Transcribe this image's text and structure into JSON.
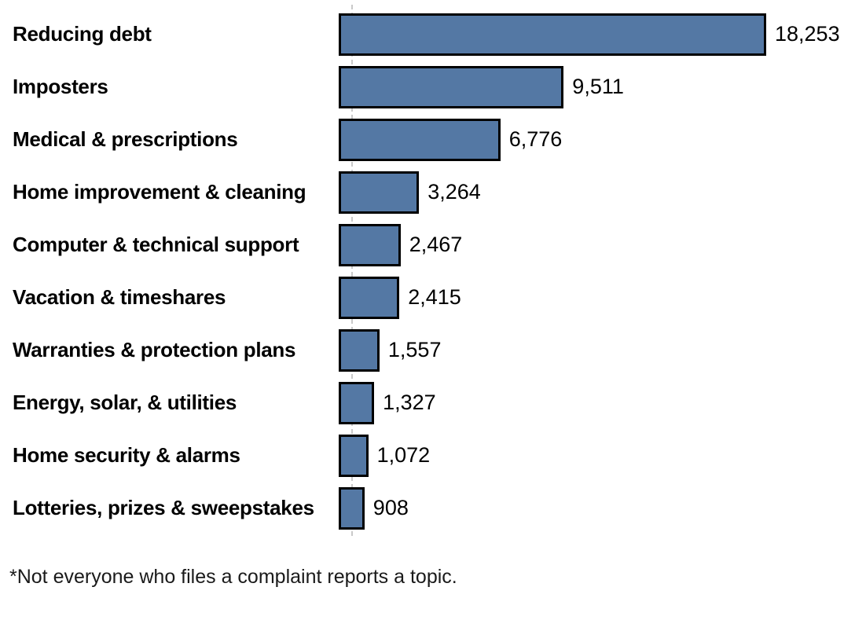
{
  "chart_data": {
    "type": "bar",
    "orientation": "horizontal",
    "title": "",
    "xlabel": "",
    "ylabel": "",
    "xlim": [
      0,
      18253
    ],
    "grid": false,
    "legend": false,
    "bar_color": "#5478a4",
    "bar_border_color": "#000000",
    "axis_line_color": "#c9c9c9",
    "categories": [
      "Reducing debt",
      "Imposters",
      "Medical & prescriptions",
      "Home improvement & cleaning",
      "Computer & technical support",
      "Vacation & timeshares",
      "Warranties & protection plans",
      "Energy, solar, & utilities",
      "Home security & alarms",
      "Lotteries, prizes & sweepstakes"
    ],
    "values": [
      18253,
      9511,
      6776,
      3264,
      2467,
      2415,
      1557,
      1327,
      1072,
      908
    ],
    "value_labels": [
      "18,253",
      "9,511",
      "6,776",
      "3,264",
      "2,467",
      "2,415",
      "1,557",
      "1,327",
      "1,072",
      "908"
    ]
  },
  "footnote": "*Not everyone who files a complaint reports a topic."
}
